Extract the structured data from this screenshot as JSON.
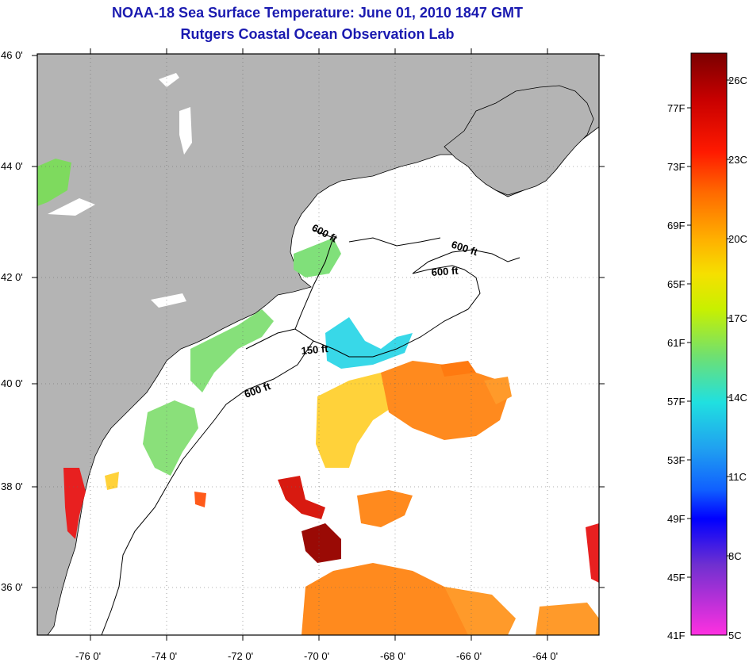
{
  "header": {
    "title": "NOAA-18 Sea Surface Temperature:  June 01, 2010 1847 GMT",
    "subtitle": "Rutgers Coastal Ocean Observation Lab"
  },
  "map": {
    "lat_ticks": [
      "46 0'",
      "44 0'",
      "42 0'",
      "40 0'",
      "38 0'",
      "36 0'"
    ],
    "lon_ticks": [
      "-76 0'",
      "-74 0'",
      "-72 0'",
      "-70 0'",
      "-68 0'",
      "-66 0'",
      "-64 0'"
    ],
    "contours": [
      {
        "label": "600 ft"
      },
      {
        "label": "600 ft"
      },
      {
        "label": "600 ft"
      },
      {
        "label": "150 ft"
      },
      {
        "label": "600 ft"
      }
    ],
    "colors": {
      "land": "#b4b4b4",
      "background": "#ffffff"
    }
  },
  "colorbar": {
    "fahrenheit": [
      "77F",
      "73F",
      "69F",
      "65F",
      "61F",
      "57F",
      "53F",
      "49F",
      "45F",
      "41F"
    ],
    "celsius": [
      "26C",
      "23C",
      "20C",
      "17C",
      "14C",
      "11C",
      "8C",
      "5C"
    ]
  }
}
